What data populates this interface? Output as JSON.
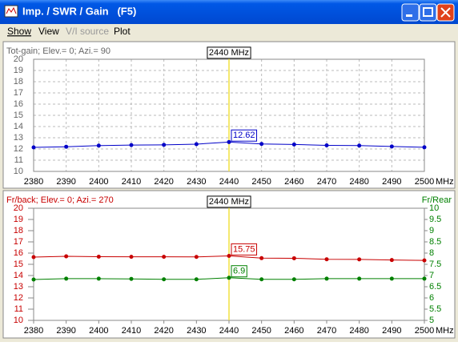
{
  "window": {
    "title": "Imp. / SWR / Gain   (F5)",
    "menu": [
      "Show",
      "View",
      "V/I source",
      "Plot"
    ]
  },
  "chart_data": [
    {
      "type": "line",
      "subtitle": "Tot-gain; Elev.= 0; Azi.= 90",
      "x_unit": "MHz",
      "x": [
        2380,
        2390,
        2400,
        2410,
        2420,
        2430,
        2440,
        2450,
        2460,
        2470,
        2480,
        2490,
        2500
      ],
      "xlim": [
        2380,
        2500
      ],
      "xticks": [
        2380,
        2390,
        2400,
        2410,
        2420,
        2430,
        2440,
        2450,
        2460,
        2470,
        2480,
        2490,
        2500
      ],
      "ylim": [
        10,
        20
      ],
      "yticks": [
        10,
        11,
        12,
        13,
        14,
        15,
        16,
        17,
        18,
        19,
        20
      ],
      "grid": true,
      "cursor": {
        "x": 2440,
        "label": "2440 MHz"
      },
      "series": [
        {
          "color": "#0000c8",
          "values": [
            12.14,
            12.2,
            12.3,
            12.35,
            12.37,
            12.43,
            12.62,
            12.45,
            12.4,
            12.32,
            12.3,
            12.22,
            12.15
          ],
          "value_labels": [
            null,
            null,
            null,
            null,
            null,
            null,
            "12.62",
            null,
            null,
            null,
            null,
            null,
            null
          ]
        }
      ]
    },
    {
      "type": "line",
      "subtitle": "Fr/back; Elev.= 0; Azi.= 270",
      "y2_label": "Fr/Rear",
      "x_unit": "MHz",
      "x": [
        2380,
        2390,
        2400,
        2410,
        2420,
        2430,
        2440,
        2450,
        2460,
        2470,
        2480,
        2490,
        2500
      ],
      "xlim": [
        2380,
        2500
      ],
      "xticks": [
        2380,
        2390,
        2400,
        2410,
        2420,
        2430,
        2440,
        2450,
        2460,
        2470,
        2480,
        2490,
        2500
      ],
      "ylim": [
        10,
        20
      ],
      "yticks": [
        10,
        11,
        12,
        13,
        14,
        15,
        16,
        17,
        18,
        19,
        20
      ],
      "y2lim": [
        5,
        10
      ],
      "y2ticks": [
        5,
        5.5,
        6,
        6.5,
        7,
        7.5,
        8,
        8.5,
        9,
        9.5,
        10
      ],
      "grid": false,
      "cursor": {
        "x": 2440,
        "label": "2440 MHz"
      },
      "series": [
        {
          "color": "#c80000",
          "values": [
            15.64,
            15.71,
            15.68,
            15.67,
            15.67,
            15.66,
            15.75,
            15.55,
            15.54,
            15.45,
            15.44,
            15.38,
            15.35
          ],
          "value_labels": [
            null,
            null,
            null,
            null,
            null,
            null,
            "15.75",
            null,
            null,
            null,
            null,
            null,
            null
          ]
        },
        {
          "color": "#008000",
          "axis": "y2",
          "values": [
            6.82,
            6.86,
            6.86,
            6.85,
            6.83,
            6.83,
            6.9,
            6.83,
            6.83,
            6.86,
            6.86,
            6.86,
            6.86
          ],
          "value_labels": [
            null,
            null,
            null,
            null,
            null,
            null,
            "6.9",
            null,
            null,
            null,
            null,
            null,
            null
          ]
        }
      ]
    }
  ]
}
